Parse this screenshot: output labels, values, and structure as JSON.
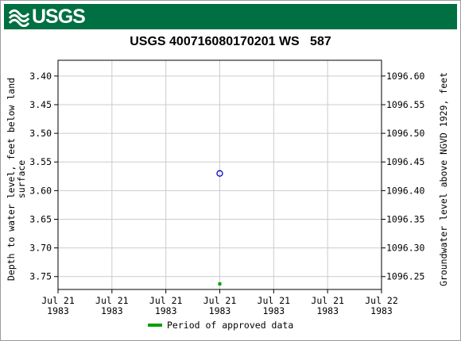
{
  "header": {
    "logo_text": "USGS",
    "logo_icon": "usgs-wave-icon",
    "brand_color": "#006f41"
  },
  "chart_data": {
    "type": "scatter",
    "title": "USGS 400716080170201 WS   587",
    "ylabel_left": "Depth to water level, feet below land surface",
    "ylabel_left_lines": [
      "Depth to water level, feet below land",
      "surface"
    ],
    "ylabel_right": "Groundwater level above NGVD 1929, feet",
    "y_left": {
      "inverted": true,
      "ylim": [
        3.3725,
        3.7725
      ],
      "ticks": [
        "3.40",
        "3.45",
        "3.50",
        "3.55",
        "3.60",
        "3.65",
        "3.70",
        "3.75"
      ]
    },
    "y_right": {
      "ylim": [
        1096.6275,
        1096.2275
      ],
      "ticks": [
        "1096.60",
        "1096.55",
        "1096.50",
        "1096.45",
        "1096.40",
        "1096.35",
        "1096.30",
        "1096.25"
      ]
    },
    "x_ticks": [
      [
        "Jul 21",
        "1983"
      ],
      [
        "Jul 21",
        "1983"
      ],
      [
        "Jul 21",
        "1983"
      ],
      [
        "Jul 21",
        "1983"
      ],
      [
        "Jul 21",
        "1983"
      ],
      [
        "Jul 21",
        "1983"
      ],
      [
        "Jul 22",
        "1983"
      ]
    ],
    "points": [
      {
        "x_tick_fraction": 0.5,
        "y": 3.57,
        "marker": "open-circle",
        "color": "#0000cc"
      }
    ],
    "approved_periods": [
      {
        "x_tick_fraction": 0.5,
        "color": "#00a000"
      }
    ],
    "legend": [
      {
        "label": "Period of approved data",
        "color": "#00a000"
      }
    ],
    "grid": true,
    "colors": {
      "grid": "#cccccc",
      "axis": "#000000"
    }
  }
}
